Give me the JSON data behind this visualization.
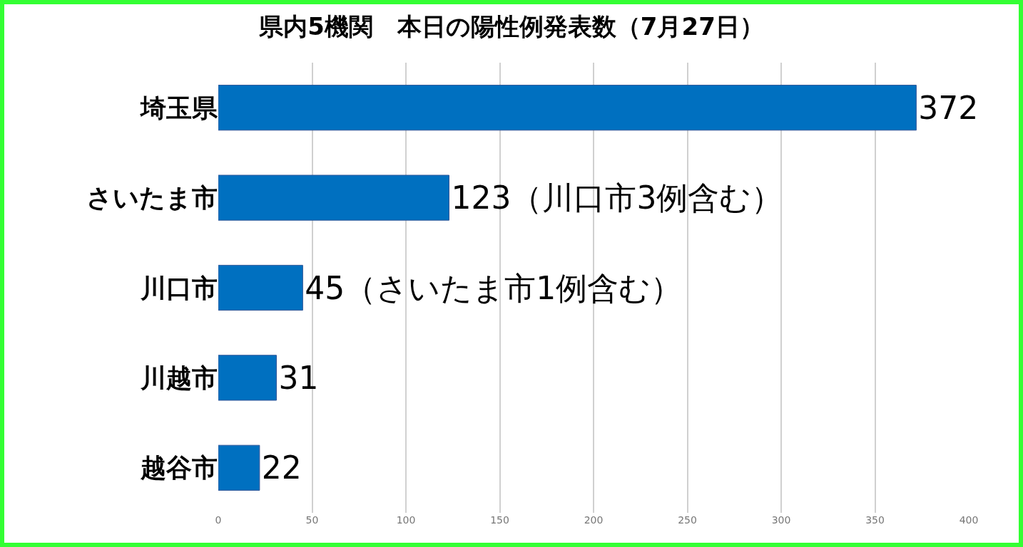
{
  "chart_data": {
    "type": "bar",
    "orientation": "horizontal",
    "title": "県内5機関　本日の陽性例発表数（7月27日）",
    "categories": [
      "埼玉県",
      "さいたま市",
      "川口市",
      "川越市",
      "越谷市"
    ],
    "values": [
      372,
      123,
      45,
      31,
      22
    ],
    "value_labels": [
      "372",
      "123（川口市3例含む）",
      "45（さいたま市1例含む）",
      "31",
      "22"
    ],
    "color": "#0070c0",
    "xlim": [
      0,
      400
    ],
    "xticks": [
      0,
      50,
      100,
      150,
      200,
      250,
      300,
      350,
      400
    ],
    "grid": "x",
    "legend": false
  }
}
